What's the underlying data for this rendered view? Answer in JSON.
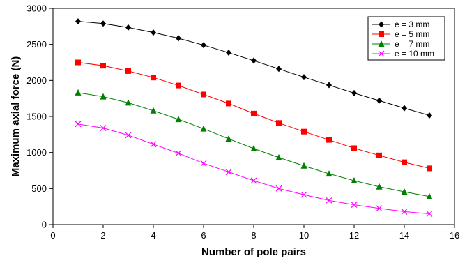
{
  "chart_data": {
    "type": "line",
    "title": "",
    "xlabel": "Number of pole pairs",
    "ylabel": "Maximum axial  force (N)",
    "xlim": [
      0,
      16
    ],
    "ylim": [
      0,
      3000
    ],
    "xticks": [
      0,
      2,
      4,
      6,
      8,
      10,
      12,
      14,
      16
    ],
    "yticks": [
      0,
      500,
      1000,
      1500,
      2000,
      2500,
      3000
    ],
    "grid": false,
    "legend_position": "top-right",
    "x": [
      1,
      2,
      3,
      4,
      5,
      6,
      7,
      8,
      9,
      10,
      11,
      12,
      13,
      14,
      15
    ],
    "series": [
      {
        "name": "e = 3 mm",
        "color": "#000000",
        "marker": "diamond",
        "values": [
          2820,
          2790,
          2735,
          2665,
          2585,
          2490,
          2385,
          2275,
          2160,
          2045,
          1935,
          1825,
          1720,
          1615,
          1515
        ]
      },
      {
        "name": "e = 5 mm",
        "color": "#ff0000",
        "marker": "square",
        "values": [
          2250,
          2205,
          2130,
          2040,
          1930,
          1805,
          1680,
          1540,
          1410,
          1290,
          1175,
          1060,
          960,
          865,
          780
        ]
      },
      {
        "name": "e = 7 mm",
        "color": "#008000",
        "marker": "triangle",
        "values": [
          1830,
          1775,
          1690,
          1580,
          1460,
          1330,
          1190,
          1055,
          930,
          815,
          705,
          610,
          525,
          455,
          390
        ]
      },
      {
        "name": "e = 10 mm",
        "color": "#ff00ff",
        "marker": "x",
        "values": [
          1395,
          1340,
          1240,
          1115,
          990,
          850,
          730,
          610,
          500,
          415,
          335,
          275,
          225,
          180,
          150
        ]
      }
    ]
  }
}
